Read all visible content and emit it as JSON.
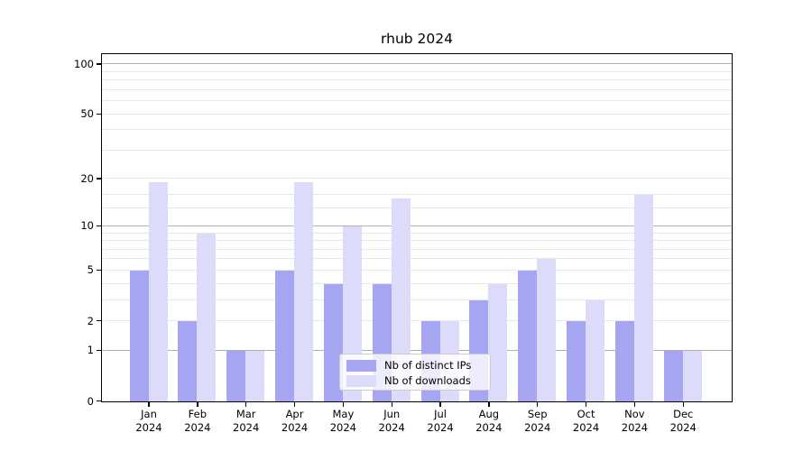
{
  "title": "rhub 2024",
  "legend": {
    "items": [
      {
        "label": "Nb of distinct IPs",
        "color": "#a5a5f1"
      },
      {
        "label": "Nb of downloads",
        "color": "#dcdcfa"
      }
    ]
  },
  "chart_data": {
    "type": "bar",
    "title": "rhub 2024",
    "categories": [
      "Jan",
      "Feb",
      "Mar",
      "Apr",
      "May",
      "Jun",
      "Jul",
      "Aug",
      "Sep",
      "Oct",
      "Nov",
      "Dec"
    ],
    "category_year": "2024",
    "series": [
      {
        "name": "Nb of distinct IPs",
        "color": "#a5a5f1",
        "values": [
          5,
          2,
          1,
          5,
          4,
          4,
          2,
          3,
          5,
          2,
          2,
          1
        ]
      },
      {
        "name": "Nb of downloads",
        "color": "#dcdcfa",
        "values": [
          19,
          9,
          1,
          19,
          10,
          15,
          2,
          4,
          6,
          3,
          16,
          1
        ]
      }
    ],
    "xlabel": "",
    "ylabel": "",
    "yscale": "log1p",
    "ylim": [
      0,
      113
    ],
    "yticks": [
      0,
      1,
      2,
      5,
      10,
      20,
      50,
      100
    ],
    "grid": true,
    "grid_major_values": [
      1,
      10,
      100
    ],
    "grid_minor_values": [
      2,
      3,
      4,
      5,
      6,
      7,
      8,
      9,
      13,
      16,
      20,
      30,
      40,
      50,
      60,
      70,
      80,
      90
    ],
    "legend_position": "lower center",
    "colors": {
      "grid_major": "#b0b0b0",
      "grid_minor": "#e7e7e7",
      "spine": "#000000",
      "text": "#000000",
      "background": "#ffffff"
    }
  }
}
